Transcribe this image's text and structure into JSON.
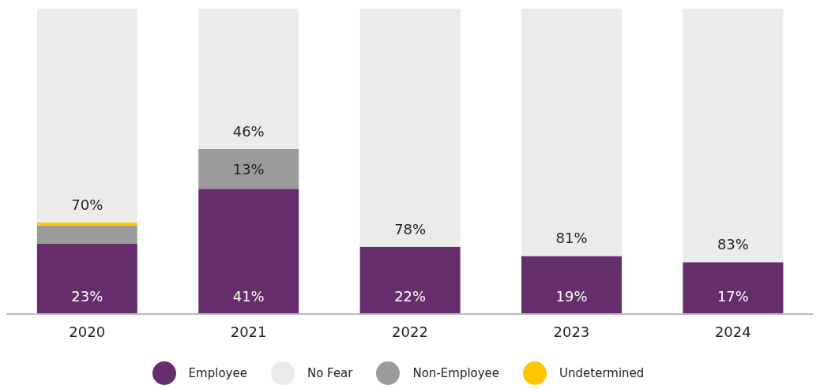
{
  "chart_data": {
    "type": "bar",
    "stacked": true,
    "categories": [
      "2020",
      "2021",
      "2022",
      "2023",
      "2024"
    ],
    "series": [
      {
        "name": "Employee",
        "color": "#652d6c",
        "values": [
          23,
          41,
          22,
          19,
          17
        ],
        "value_labels": [
          "23%",
          "41%",
          "22%",
          "19%",
          "17%"
        ]
      },
      {
        "name": "Non-Employee",
        "color": "#9b9b9b",
        "values": [
          6,
          13,
          0,
          0,
          0
        ],
        "value_labels": [
          null,
          "13%",
          null,
          null,
          null
        ]
      },
      {
        "name": "Undetermined",
        "color": "#ffc700",
        "values": [
          1,
          0,
          0,
          0,
          0
        ],
        "value_labels": [
          null,
          null,
          null,
          null,
          null
        ]
      },
      {
        "name": "No Fear",
        "color": "#ebebeb",
        "values": [
          70,
          46,
          78,
          81,
          83
        ],
        "value_labels": [
          "70%",
          "46%",
          "78%",
          "81%",
          "83%"
        ]
      }
    ],
    "ylim": [
      0,
      100
    ],
    "legend": "bottom",
    "grid": false
  }
}
